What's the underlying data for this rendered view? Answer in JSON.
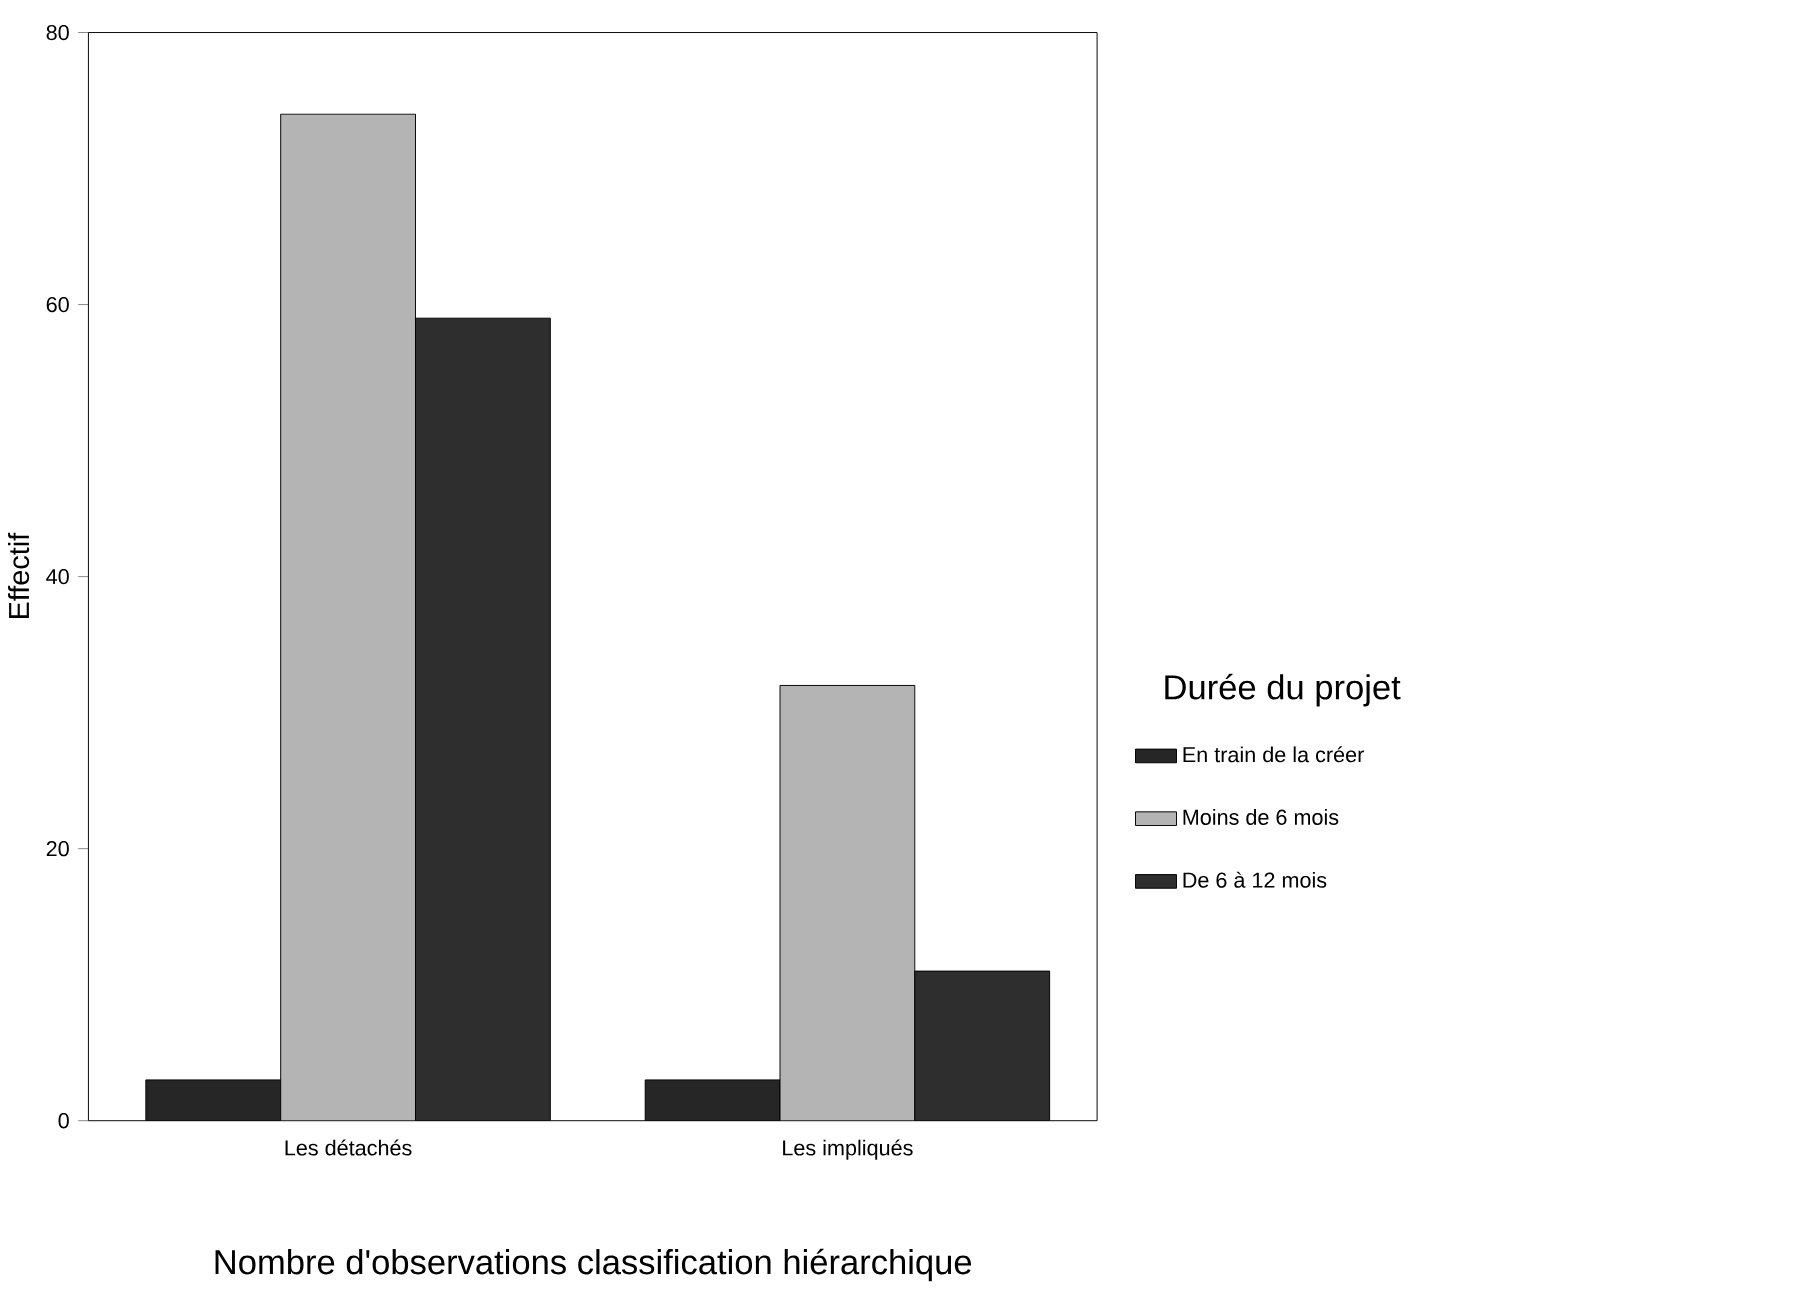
{
  "chart_data": {
    "type": "bar",
    "xlabel": "Nombre d'observations classification hiérarchique",
    "ylabel": "Effectif",
    "legend_title": "Durée du projet",
    "categories": [
      "Les détachés",
      "Les impliqués"
    ],
    "series": [
      {
        "name": "En train de la créer",
        "color": "#262626",
        "values": [
          3,
          3
        ]
      },
      {
        "name": "Moins de 6 mois",
        "color": "#b4b4b4",
        "values": [
          74,
          32
        ]
      },
      {
        "name": "De 6 à 12 mois",
        "color": "#2e2e2e",
        "values": [
          59,
          11
        ]
      }
    ],
    "ylim": [
      0,
      80
    ],
    "yticks": [
      0,
      20,
      40,
      60,
      80
    ],
    "grid": false,
    "legend": "right"
  }
}
